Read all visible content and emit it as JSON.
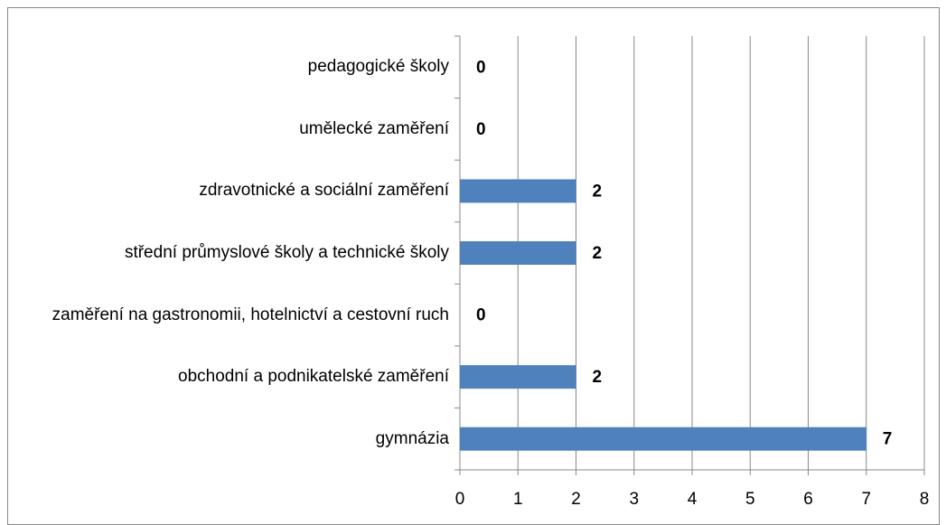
{
  "chart_data": {
    "type": "barh",
    "categories": [
      "gymnázia",
      "obchodní a podnikatelské zaměření",
      "zaměření na gastronomii, hotelnictví a cestovní ruch",
      "střední průmyslové školy a technické školy",
      "zdravotnické a sociální zaměření",
      "umělecké zaměření",
      "pedagogické školy"
    ],
    "values": [
      7,
      2,
      0,
      2,
      2,
      0,
      0
    ],
    "color": "#4f81bd",
    "xlim": [
      0,
      8
    ],
    "xticks": [
      0,
      1,
      2,
      3,
      4,
      5,
      6,
      7,
      8
    ],
    "grid": true
  }
}
